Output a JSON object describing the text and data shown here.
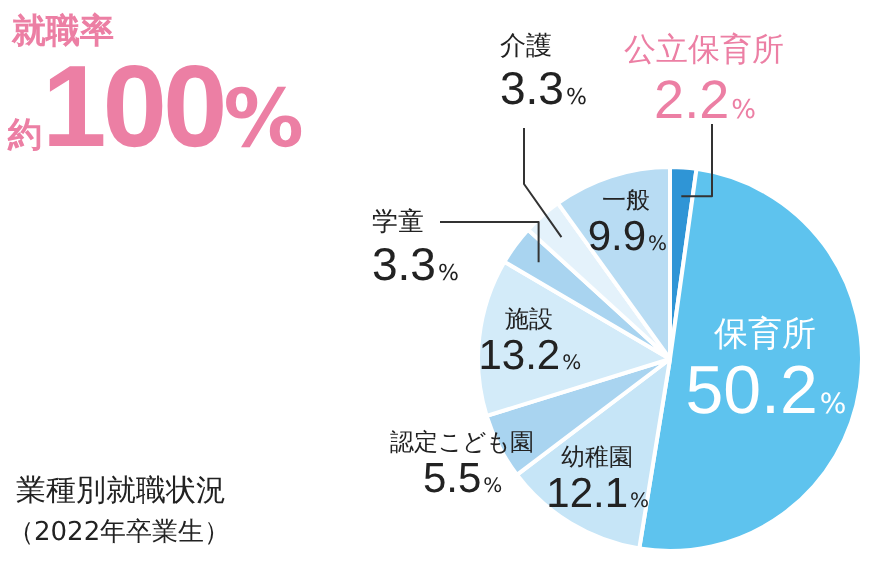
{
  "chart_data": {
    "type": "pie",
    "title": "業種別就職状況",
    "subtitle": "（2022年卒業生）",
    "annotations": [
      "就職率",
      "約100%"
    ],
    "categories": [
      "公立保育所",
      "保育所",
      "幼稚園",
      "認定こども園",
      "施設",
      "学童",
      "介護",
      "一般"
    ],
    "values": [
      2.2,
      50.2,
      12.1,
      5.5,
      13.2,
      3.3,
      3.3,
      9.9
    ],
    "value_labels": [
      "2.2%",
      "50.2%",
      "12.1%",
      "5.5%",
      "13.2%",
      "3.3%",
      "3.3%",
      "9.9%"
    ],
    "colors": [
      "#2f95d6",
      "#5ec3ee",
      "#c6e5f7",
      "#a9d4f0",
      "#d3ebf9",
      "#a9d4f0",
      "#e4f2fb",
      "#b8dcf3"
    ],
    "legend": false
  }
}
